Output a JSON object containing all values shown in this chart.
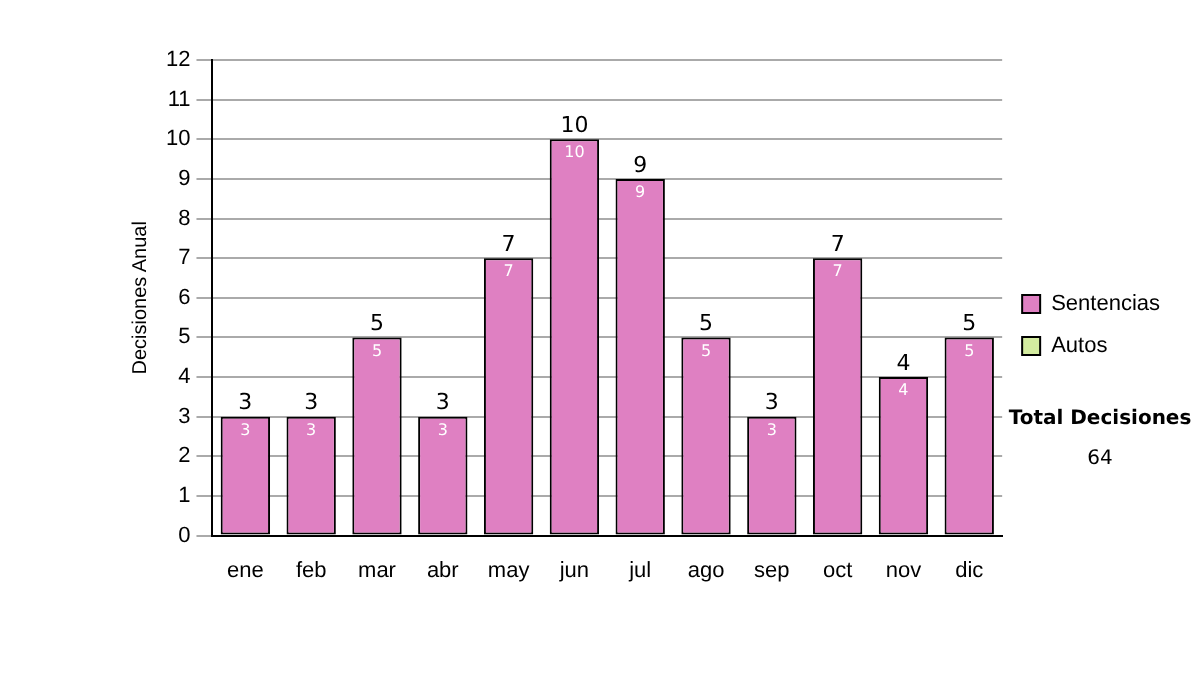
{
  "chart_data": {
    "type": "bar",
    "ylabel": "Decisiones Anual",
    "categories": [
      "ene",
      "feb",
      "mar",
      "abr",
      "may",
      "jun",
      "jul",
      "ago",
      "sep",
      "oct",
      "nov",
      "dic"
    ],
    "series": [
      {
        "name": "Sentencias",
        "color": "#df80c2",
        "values": [
          3,
          3,
          5,
          3,
          7,
          10,
          9,
          5,
          3,
          7,
          4,
          5
        ]
      },
      {
        "name": "Autos",
        "color": "#d4eca0",
        "values": [
          null,
          null,
          null,
          null,
          null,
          null,
          null,
          null,
          null,
          null,
          null,
          null
        ]
      }
    ],
    "stacked": true,
    "data_labels": true,
    "totals": [
      "3",
      "3",
      "5",
      "3",
      "7",
      "10",
      "9",
      "5",
      "3",
      "7",
      "4",
      "5"
    ],
    "ylim": [
      0,
      12
    ],
    "yticks": [
      0,
      1,
      2,
      3,
      4,
      5,
      6,
      7,
      8,
      9,
      10,
      11,
      12
    ],
    "grid": "y",
    "legend": "right",
    "annotations": [
      "Total Decisiones",
      "64"
    ]
  }
}
